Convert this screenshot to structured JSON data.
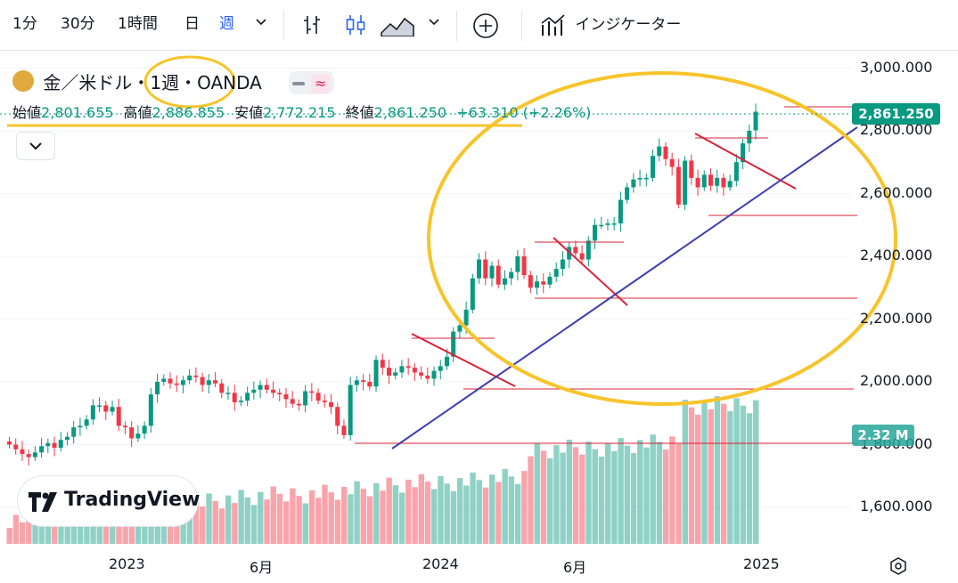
{
  "toolbar": {
    "intervals": [
      "1分",
      "30分",
      "1時間",
      "日",
      "週"
    ],
    "active_interval": "週",
    "indicators_label": "インジケーター"
  },
  "legend": {
    "symbol": "金／米ドル・1週・OANDA",
    "open_label": "始値",
    "open": "2,801.655",
    "high_label": "高値",
    "high": "2,886.855",
    "low_label": "安値",
    "low": "2,772.215",
    "close_label": "終値",
    "close": "2,861.250",
    "change": "+63.310 (+2.26%)"
  },
  "price_axis": {
    "labels": [
      "3,000.000",
      "2,800.000",
      "2,600.000",
      "2,400.000",
      "2,200.000",
      "2,000.000",
      "1,800.000",
      "1,600.000"
    ],
    "current_price": "2,861.250",
    "volume_tag": "2.32 M"
  },
  "time_axis": {
    "labels": [
      "2023",
      "6月",
      "2024",
      "6月",
      "2025"
    ]
  },
  "watermark": {
    "brand": "TradingView"
  },
  "colors": {
    "up": "#089981",
    "down": "#f23645",
    "accent": "#2962ff",
    "annotation": "#f7c42b",
    "trendline": "#3f3fb0"
  },
  "chart_data": {
    "type": "candlestick",
    "interval": "1週",
    "symbol": "金／米ドル",
    "source": "OANDA",
    "y_ticks": [
      3000,
      2800,
      2600,
      2400,
      2200,
      2000,
      1800,
      1600
    ],
    "ylim": [
      1550,
      3020
    ],
    "x_ticks": [
      "2023",
      "6月",
      "2024",
      "6月",
      "2025"
    ],
    "last_candle": {
      "open": 2801.655,
      "high": 2886.855,
      "low": 2772.215,
      "close": 2861.25
    },
    "closes": [
      1800,
      1785,
      1770,
      1760,
      1775,
      1795,
      1805,
      1790,
      1815,
      1825,
      1855,
      1860,
      1880,
      1925,
      1925,
      1905,
      1920,
      1860,
      1855,
      1820,
      1835,
      1860,
      1960,
      2000,
      2010,
      1995,
      1990,
      2005,
      2020,
      2015,
      1990,
      2005,
      1995,
      1965,
      1965,
      1935,
      1940,
      1965,
      1975,
      1990,
      1975,
      1965,
      1960,
      1945,
      1930,
      1925,
      1970,
      1965,
      1940,
      1935,
      1920,
      1860,
      1830,
      1990,
      2005,
      2000,
      1985,
      2070,
      2045,
      2020,
      2030,
      2050,
      2045,
      2030,
      2020,
      2010,
      2035,
      2050,
      2080,
      2160,
      2180,
      2230,
      2330,
      2390,
      2330,
      2370,
      2310,
      2330,
      2350,
      2400,
      2340,
      2300,
      2320,
      2310,
      2335,
      2360,
      2390,
      2430,
      2410,
      2390,
      2450,
      2500,
      2500,
      2505,
      2505,
      2580,
      2620,
      2645,
      2650,
      2650,
      2720,
      2750,
      2710,
      2685,
      2565,
      2705,
      2650,
      2620,
      2660,
      2625,
      2650,
      2620,
      2640,
      2700,
      2760,
      2800,
      2861
    ]
  }
}
